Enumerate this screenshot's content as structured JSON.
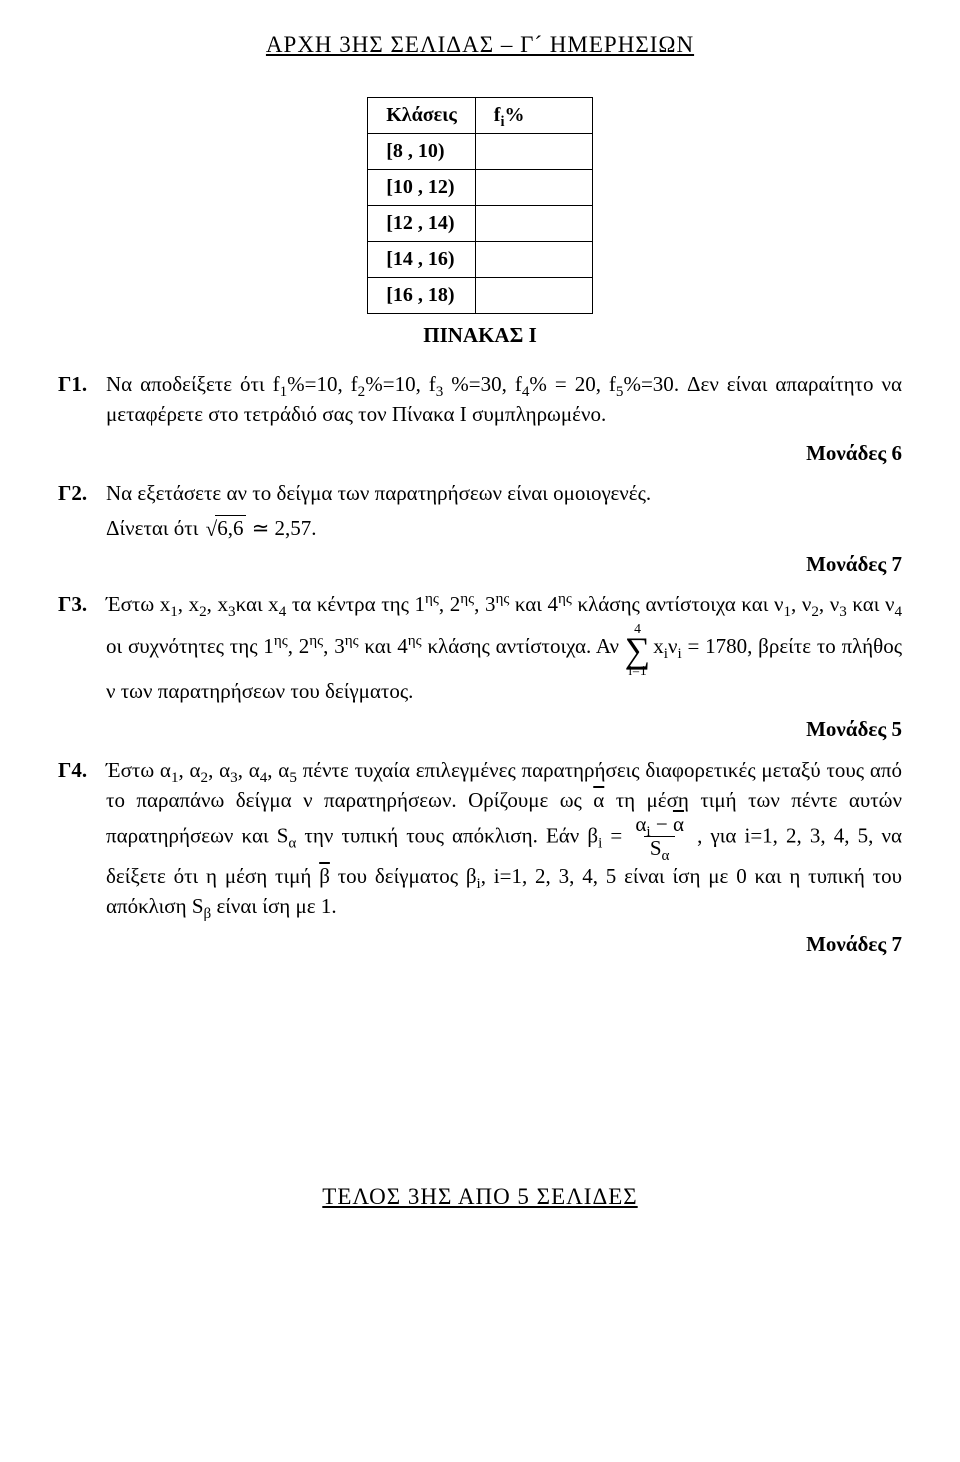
{
  "header": "ΑΡΧΗ 3ΗΣ ΣΕΛΙΔΑΣ – Γ´ ΗΜΕΡΗΣΙΩΝ",
  "footer": "ΤΕΛΟΣ 3ΗΣ ΑΠΟ 5 ΣΕΛΙΔΕΣ",
  "table": {
    "caption": "ΠΙΝΑΚΑΣ Ι",
    "head_col1": "Κλάσεις",
    "head_col2_pre": "f",
    "head_col2_sub": "i",
    "head_col2_post": "%",
    "rows": [
      "[8 , 10)",
      "[10 , 12)",
      "[12 , 14)",
      "[14 , 16)",
      "[16 , 18)"
    ]
  },
  "g1": {
    "label": "Γ1.",
    "text_a": "Να αποδείξετε ότι ",
    "eq1": "f",
    "s1": "1",
    "eq2": "%=10, f",
    "s2": "2",
    "eq3": "%=10, f",
    "s3": "3",
    "eq4": " %=30, f",
    "s4": "4",
    "eq5": "% = 20, f",
    "s5": "5",
    "eq6": "%=30",
    "text_b": ". Δεν είναι απαραίτητο να μεταφέρετε στο τετράδιό σας τον Πίνακα Ι συμπληρωμένο.",
    "points": "Μονάδες 6"
  },
  "g2": {
    "label": "Γ2.",
    "text": "Να εξετάσετε αν το δείγμα των παρατηρήσεων είναι ομοιογενές.",
    "hint_a": "Δίνεται ότι ",
    "radicand": "6,6",
    "hint_b": " ≃ 2,57.",
    "points": "Μονάδες 7"
  },
  "g3": {
    "label": "Γ3.",
    "t1": "Έστω ",
    "x": "x",
    "s1": "1",
    "t2": ", x",
    "s2": "2",
    "t3": ", x",
    "s3": "3",
    "t3b": "και x",
    "s4": "4",
    "t4": " τα κέντρα της 1",
    "sup1": "ης",
    "t5": ", 2",
    "sup2": "ης",
    "t6": ", 3",
    "sup3": "ης",
    "t7": " και 4",
    "sup4": "ης",
    "t8": " κλάσης αντίστοιχα και ",
    "nu": "ν",
    "t9": ", ν",
    "t9b": " και ν",
    "t10": " οι συχνότητες της 1",
    "t11": ", 2",
    "t12": ", 3",
    "t13": " και 4",
    "t14": " κλάσης αντίστοιχα. Αν ",
    "sigma_upper": "4",
    "sigma_lower": "i=1",
    "sigma_body_a": "x",
    "sigma_body_sub1": "i",
    "sigma_body_b": "ν",
    "sigma_body_sub2": "i",
    "sigma_body_c": " = 1780",
    "t15": ", βρείτε το πλήθος ν των παρατηρήσεων του δείγματος.",
    "points": "Μονάδες 5"
  },
  "g4": {
    "label": "Γ4.",
    "t1": "Έστω ",
    "a": "α",
    "s1": "1",
    "t2": ", α",
    "s2": "2",
    "t3": ", α",
    "s3": "3",
    "t4": ", α",
    "s4": "4",
    "t5": ", α",
    "s5": "5",
    "t6": " πέντε τυχαία επιλεγμένες παρατηρήσεις διαφορετικές μεταξύ τους από το παραπάνω δείγμα ν παρατηρήσεων. Ορίζουμε ως ",
    "abar": "α",
    "t7": " τη μέση τιμή των πέντε αυτών παρατηρήσεων και S",
    "sSa": "α",
    "t8": " την τυπική τους απόκλιση. Εάν ",
    "beta": "β",
    "si": "i",
    "eq": " = ",
    "frac_num_a": "α",
    "frac_num_sub": "i",
    "frac_num_b": " − ",
    "frac_num_bar": "α",
    "frac_den_a": "S",
    "frac_den_sub": "α",
    "t9": " , για i=1, 2, 3, 4, 5, να δείξετε ότι η μέση τιμή ",
    "bbar": "β",
    "t10": " του δείγματος β",
    "t11": ", i=1, 2, 3, 4, 5 είναι ίση με 0 και η τυπική του απόκλιση S",
    "sSb": "β",
    "t12": " είναι ίση με 1.",
    "points": "Μονάδες 7"
  }
}
